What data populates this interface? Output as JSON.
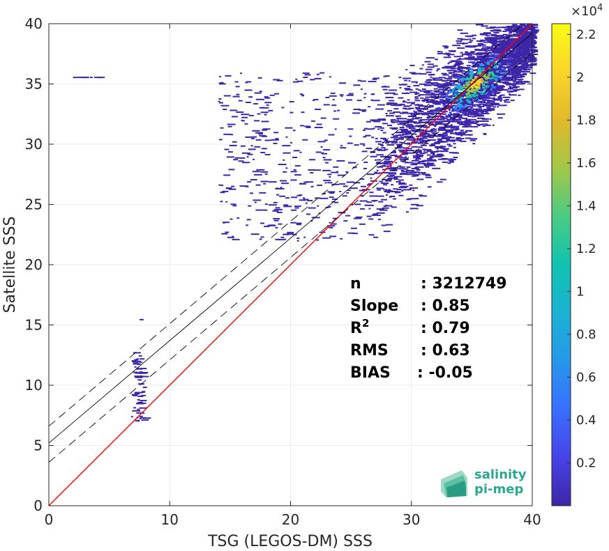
{
  "chart_data": {
    "type": "heatmap",
    "title": "",
    "xlabel": "TSG (LEGOS-DM) SSS",
    "ylabel": "Satellite SSS",
    "xlim": [
      0,
      40
    ],
    "ylim": [
      0,
      40
    ],
    "xticks": [
      0,
      10,
      20,
      30,
      40
    ],
    "yticks": [
      0,
      5,
      10,
      15,
      20,
      25,
      30,
      35,
      40
    ],
    "grid": true,
    "colorbar": {
      "exponent_label": "×10",
      "exponent": "4",
      "range": [
        0,
        2.25
      ],
      "ticks": [
        0.2,
        0.4,
        0.6,
        0.8,
        1,
        1.2,
        1.4,
        1.6,
        1.8,
        2,
        2.2
      ],
      "colormap": [
        "#3e26a8",
        "#4743e6",
        "#3a6ffd",
        "#2797eb",
        "#1cb2d3",
        "#10c3b0",
        "#4bcb84",
        "#a2c748",
        "#e1b92c",
        "#fbd52a",
        "#f9fb15"
      ]
    },
    "identity_line": {
      "x": [
        0,
        40
      ],
      "y": [
        0,
        40
      ],
      "color": "#ff0000"
    },
    "fit_line": {
      "x": [
        0,
        40
      ],
      "y": [
        5.2,
        39.2
      ],
      "color": "#000000"
    },
    "fit_bounds": [
      {
        "x": [
          0,
          40
        ],
        "y": [
          6.6,
          40.6
        ]
      },
      {
        "x": [
          0,
          40
        ],
        "y": [
          3.6,
          37.6
        ]
      }
    ],
    "stats": [
      {
        "label": "n",
        "sep": ":",
        "value": "3212749"
      },
      {
        "label": "Slope",
        "sep": ":",
        "value": "0.85"
      },
      {
        "label": "R",
        "sup": "2",
        "sep": ":",
        "value": "0.79"
      },
      {
        "label": "RMS",
        "sep": ":",
        "value": "0.63"
      },
      {
        "label": "BIAS",
        "sep": ":",
        "value": "-0.05"
      }
    ],
    "density_core": {
      "x": 35.2,
      "y": 35.1,
      "peak": 2.2
    }
  },
  "logo": {
    "line1": "salinity",
    "line2": "pi-mep"
  }
}
